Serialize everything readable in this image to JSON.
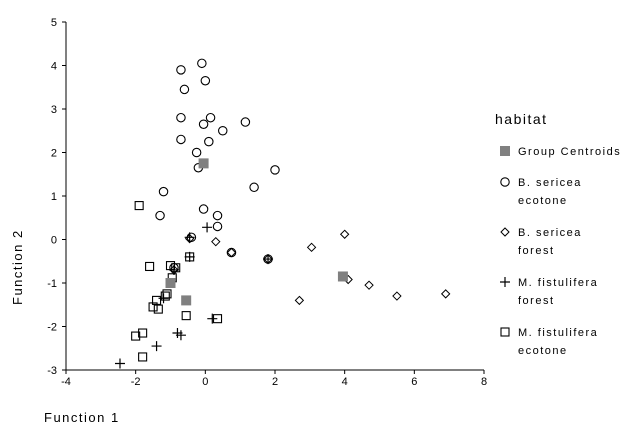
{
  "chart_data": {
    "type": "scatter",
    "xlabel": "Function 1",
    "ylabel": "Function 2",
    "xlim": [
      -4,
      8
    ],
    "ylim": [
      -3,
      5
    ],
    "xticks": [
      -4,
      -2,
      0,
      2,
      4,
      6,
      8
    ],
    "yticks": [
      -3,
      -2,
      -1,
      0,
      1,
      2,
      3,
      4,
      5
    ],
    "grid": false,
    "legend_position": "right",
    "legend": {
      "title": "habitat",
      "entries": [
        {
          "marker": "filled-square",
          "lines": [
            "Group Centroids"
          ]
        },
        {
          "marker": "circle",
          "lines": [
            "B. sericea",
            "ecotone"
          ]
        },
        {
          "marker": "diamond",
          "lines": [
            "B. sericea",
            "forest"
          ]
        },
        {
          "marker": "plus",
          "lines": [
            "M. fistulifera",
            "forest"
          ]
        },
        {
          "marker": "open-square",
          "lines": [
            "M. fistulifera",
            "ecotone"
          ]
        }
      ]
    },
    "series": [
      {
        "name": "Group Centroids",
        "marker": "filled-square",
        "color": "#808080",
        "points": [
          [
            -0.05,
            1.75
          ],
          [
            3.95,
            -0.85
          ],
          [
            -1.0,
            -1.0
          ],
          [
            -0.55,
            -1.4
          ]
        ]
      },
      {
        "name": "B. sericea ecotone",
        "marker": "circle",
        "color": "#000000",
        "points": [
          [
            -0.1,
            4.05
          ],
          [
            -0.7,
            3.9
          ],
          [
            0.0,
            3.65
          ],
          [
            -0.6,
            3.45
          ],
          [
            -0.7,
            2.8
          ],
          [
            0.15,
            2.8
          ],
          [
            1.15,
            2.7
          ],
          [
            -0.05,
            2.65
          ],
          [
            0.5,
            2.5
          ],
          [
            -0.7,
            2.3
          ],
          [
            0.1,
            2.25
          ],
          [
            -0.25,
            2.0
          ],
          [
            -0.2,
            1.65
          ],
          [
            2.0,
            1.6
          ],
          [
            1.4,
            1.2
          ],
          [
            -1.2,
            1.1
          ],
          [
            -0.05,
            0.7
          ],
          [
            0.35,
            0.55
          ],
          [
            -1.3,
            0.55
          ],
          [
            0.35,
            0.3
          ],
          [
            -0.4,
            0.05
          ],
          [
            0.75,
            -0.3
          ],
          [
            1.8,
            -0.45
          ],
          [
            -0.9,
            -0.65
          ]
        ]
      },
      {
        "name": "B. sericea forest",
        "marker": "diamond",
        "color": "#000000",
        "points": [
          [
            4.0,
            0.12
          ],
          [
            3.05,
            -0.18
          ],
          [
            0.3,
            -0.05
          ],
          [
            -0.45,
            0.02
          ],
          [
            0.75,
            -0.3
          ],
          [
            1.8,
            -0.45
          ],
          [
            4.1,
            -0.92
          ],
          [
            4.7,
            -1.05
          ],
          [
            6.9,
            -1.25
          ],
          [
            5.5,
            -1.3
          ],
          [
            2.7,
            -1.4
          ],
          [
            -0.9,
            -0.7
          ]
        ]
      },
      {
        "name": "M. fistulifera forest",
        "marker": "plus",
        "color": "#000000",
        "points": [
          [
            0.05,
            0.28
          ],
          [
            -0.45,
            0.05
          ],
          [
            -0.45,
            -0.4
          ],
          [
            -0.9,
            -0.7
          ],
          [
            1.8,
            -0.45
          ],
          [
            -1.2,
            -1.35
          ],
          [
            0.2,
            -1.82
          ],
          [
            -0.8,
            -2.15
          ],
          [
            -0.7,
            -2.2
          ],
          [
            -1.4,
            -2.45
          ],
          [
            -2.45,
            -2.85
          ]
        ]
      },
      {
        "name": "M. fistulifera ecotone",
        "marker": "open-square",
        "color": "#000000",
        "points": [
          [
            -1.9,
            0.78
          ],
          [
            -1.6,
            -0.62
          ],
          [
            -0.45,
            -0.4
          ],
          [
            -1.0,
            -0.6
          ],
          [
            -0.85,
            -0.65
          ],
          [
            -0.95,
            -0.88
          ],
          [
            -1.1,
            -1.25
          ],
          [
            -1.4,
            -1.4
          ],
          [
            -1.5,
            -1.55
          ],
          [
            -1.35,
            -1.6
          ],
          [
            -1.15,
            -1.3
          ],
          [
            -0.55,
            -1.75
          ],
          [
            0.35,
            -1.82
          ],
          [
            -2.0,
            -2.22
          ],
          [
            -1.8,
            -2.15
          ],
          [
            -1.8,
            -2.7
          ]
        ]
      }
    ]
  }
}
